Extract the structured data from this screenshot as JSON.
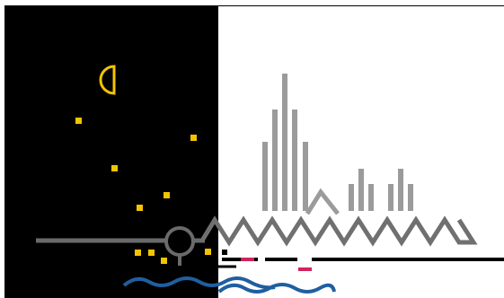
{
  "colors": {
    "background": "#ffffff",
    "night_panel": "#000000",
    "frame_line": "#000000",
    "moon": "#f5c400",
    "stars": "#f5c400",
    "buildings": "#9b9b9b",
    "zigzag": "#707070",
    "rail": "#6a6a6a",
    "water": "#1f5fa0",
    "road_markers": "#d0245f",
    "road": "#000000"
  },
  "icons": {
    "moon": "half-moon-icon",
    "star": "square-star-icon",
    "circle_node": "circle-node-icon"
  }
}
